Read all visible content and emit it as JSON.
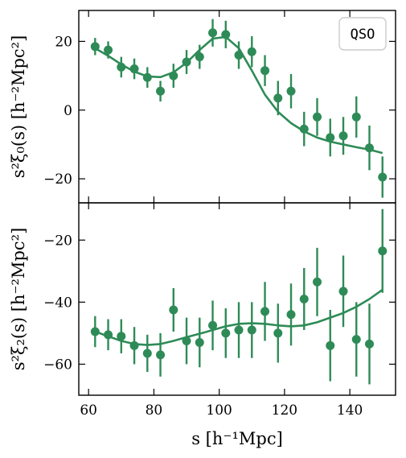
{
  "chart_data": [
    {
      "type": "scatter",
      "panel": "monopole",
      "ylabel": "s²ξ₀(s) [h⁻²Mpc²]",
      "xlabel": "",
      "xlim": [
        57,
        154
      ],
      "ylim": [
        -27,
        29
      ],
      "yticks": [
        -20,
        0,
        20
      ],
      "ytick_labels": [
        "−20",
        "0",
        "20"
      ],
      "xticks": [
        60,
        80,
        100,
        120,
        140
      ],
      "legend": {
        "label": "QSO",
        "placement": "top-right"
      },
      "color": "#2e8b57",
      "series": [
        {
          "kind": "data",
          "x": [
            62,
            66,
            70,
            74,
            78,
            82,
            86,
            90,
            94,
            98,
            102,
            106,
            110,
            114,
            118,
            122,
            126,
            130,
            134,
            138,
            142,
            146,
            150
          ],
          "y": [
            18.5,
            17.5,
            12.5,
            12,
            9.5,
            5.5,
            10,
            14,
            15.5,
            22.5,
            22,
            16,
            17,
            11.5,
            3.5,
            5.5,
            -5.5,
            -2,
            -8,
            -7.5,
            -2,
            -11,
            -19.5
          ],
          "yerr": [
            2.5,
            2.5,
            3,
            3,
            3,
            3,
            3.5,
            3.5,
            3.5,
            4,
            4,
            4,
            4.5,
            4.5,
            5,
            5,
            5,
            5.5,
            5.5,
            5.5,
            6,
            6.5,
            6
          ]
        },
        {
          "kind": "model",
          "x": [
            62,
            66,
            70,
            74,
            78,
            82,
            86,
            90,
            94,
            98,
            102,
            106,
            110,
            114,
            118,
            122,
            126,
            130,
            134,
            138,
            142,
            146,
            150
          ],
          "y": [
            18,
            15.8,
            13.3,
            11.2,
            9.8,
            9.6,
            11,
            13.8,
            17.5,
            20.8,
            21.3,
            18,
            11.5,
            4.5,
            -0.5,
            -3.8,
            -6.2,
            -8,
            -9.2,
            -10,
            -10.8,
            -11.5,
            -12.5
          ]
        }
      ]
    },
    {
      "type": "scatter",
      "panel": "quadrupole",
      "ylabel": "s²ξ₂(s) [h⁻²Mpc²]",
      "xlabel": "s [h⁻¹Mpc]",
      "xlim": [
        57,
        154
      ],
      "ylim": [
        -70,
        -8
      ],
      "yticks": [
        -60,
        -40,
        -20
      ],
      "ytick_labels": [
        "−60",
        "−40",
        "−20"
      ],
      "xticks": [
        60,
        80,
        100,
        120,
        140
      ],
      "xtick_labels": [
        "60",
        "80",
        "100",
        "120",
        "140"
      ],
      "color": "#2e8b57",
      "series": [
        {
          "kind": "data",
          "x": [
            62,
            66,
            70,
            74,
            78,
            82,
            86,
            90,
            94,
            98,
            102,
            106,
            110,
            114,
            118,
            122,
            126,
            130,
            134,
            138,
            142,
            146,
            150
          ],
          "y": [
            -49.5,
            -50.5,
            -51,
            -54,
            -56.5,
            -57,
            -42.5,
            -52.5,
            -53,
            -47.5,
            -50,
            -49,
            -49,
            -43,
            -50,
            -44,
            -39,
            -33.5,
            -54,
            -36.5,
            -52,
            -53.5,
            -23.5
          ],
          "yerr": [
            5,
            5,
            5.5,
            6,
            6,
            7,
            7,
            7.5,
            8,
            8,
            8,
            9,
            9,
            9.5,
            9.5,
            10,
            10,
            11,
            11.5,
            11.5,
            12,
            13,
            13.5
          ]
        },
        {
          "kind": "model",
          "x": [
            62,
            66,
            70,
            74,
            78,
            82,
            86,
            90,
            94,
            98,
            102,
            106,
            110,
            114,
            118,
            122,
            126,
            130,
            134,
            138,
            142,
            146,
            150
          ],
          "y": [
            -49.5,
            -51,
            -52.5,
            -53.5,
            -53.8,
            -53.5,
            -52.5,
            -51.3,
            -50.2,
            -49,
            -47.8,
            -47,
            -46.8,
            -47,
            -47.5,
            -47.8,
            -47.5,
            -46.5,
            -45,
            -43.5,
            -41.5,
            -39,
            -36
          ]
        }
      ]
    }
  ]
}
